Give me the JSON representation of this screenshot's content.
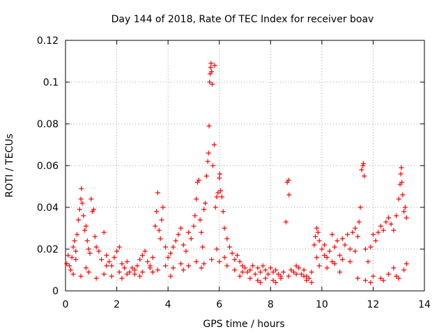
{
  "chart_data": {
    "type": "scatter",
    "title": "Day 144 of 2018, Rate Of TEC Index for receiver boav",
    "xlabel": "GPS time / hours",
    "ylabel": "ROTI / TECUs",
    "xlim": [
      0,
      14
    ],
    "ylim": [
      0,
      0.12
    ],
    "xticks": [
      "0",
      "2",
      "4",
      "6",
      "8",
      "10",
      "12",
      "14"
    ],
    "yticks": [
      "0",
      "0.02",
      "0.04",
      "0.06",
      "0.08",
      "0.1",
      "0.12"
    ],
    "grid": true,
    "marker": "plus",
    "color": "#ff0000",
    "series": [
      {
        "name": "ROTI",
        "points": [
          [
            0.05,
            0.013
          ],
          [
            0.1,
            0.017
          ],
          [
            0.15,
            0.012
          ],
          [
            0.2,
            0.01
          ],
          [
            0.25,
            0.016
          ],
          [
            0.3,
            0.021
          ],
          [
            0.35,
            0.024
          ],
          [
            0.4,
            0.019
          ],
          [
            0.45,
            0.027
          ],
          [
            0.5,
            0.034
          ],
          [
            0.55,
            0.039
          ],
          [
            0.6,
            0.044
          ],
          [
            0.62,
            0.049
          ],
          [
            0.65,
            0.042
          ],
          [
            0.7,
            0.036
          ],
          [
            0.75,
            0.029
          ],
          [
            0.8,
            0.031
          ],
          [
            0.85,
            0.024
          ],
          [
            0.9,
            0.02
          ],
          [
            0.95,
            0.018
          ],
          [
            1.0,
            0.044
          ],
          [
            1.05,
            0.038
          ],
          [
            1.1,
            0.039
          ],
          [
            1.15,
            0.026
          ],
          [
            1.2,
            0.021
          ],
          [
            1.3,
            0.019
          ],
          [
            1.4,
            0.015
          ],
          [
            1.5,
            0.028
          ],
          [
            1.6,
            0.017
          ],
          [
            1.7,
            0.014
          ],
          [
            1.8,
            0.012
          ],
          [
            1.9,
            0.016
          ],
          [
            2.0,
            0.019
          ],
          [
            2.1,
            0.021
          ],
          [
            2.2,
            0.013
          ],
          [
            2.3,
            0.011
          ],
          [
            2.4,
            0.014
          ],
          [
            2.5,
            0.009
          ],
          [
            2.6,
            0.011
          ],
          [
            2.7,
            0.008
          ],
          [
            2.8,
            0.012
          ],
          [
            2.9,
            0.015
          ],
          [
            3.0,
            0.017
          ],
          [
            3.1,
            0.019
          ],
          [
            3.2,
            0.014
          ],
          [
            3.3,
            0.012
          ],
          [
            3.4,
            0.016
          ],
          [
            3.5,
            0.031
          ],
          [
            3.55,
            0.038
          ],
          [
            3.6,
            0.047
          ],
          [
            3.65,
            0.029
          ],
          [
            3.7,
            0.025
          ],
          [
            3.75,
            0.034
          ],
          [
            3.8,
            0.04
          ],
          [
            3.9,
            0.021
          ],
          [
            4.0,
            0.016
          ],
          [
            4.1,
            0.018
          ],
          [
            4.2,
            0.021
          ],
          [
            4.3,
            0.024
          ],
          [
            4.4,
            0.027
          ],
          [
            4.5,
            0.03
          ],
          [
            4.6,
            0.022
          ],
          [
            4.7,
            0.019
          ],
          [
            4.8,
            0.028
          ],
          [
            4.9,
            0.025
          ],
          [
            5.0,
            0.031
          ],
          [
            5.05,
            0.036
          ],
          [
            5.1,
            0.044
          ],
          [
            5.15,
            0.052
          ],
          [
            5.2,
            0.053
          ],
          [
            5.25,
            0.034
          ],
          [
            5.3,
            0.028
          ],
          [
            5.35,
            0.021
          ],
          [
            5.4,
            0.039
          ],
          [
            5.45,
            0.042
          ],
          [
            5.5,
            0.055
          ],
          [
            5.55,
            0.062
          ],
          [
            5.58,
            0.066
          ],
          [
            5.6,
            0.079
          ],
          [
            5.62,
            0.1
          ],
          [
            5.64,
            0.104
          ],
          [
            5.66,
            0.107
          ],
          [
            5.68,
            0.109
          ],
          [
            5.7,
            0.105
          ],
          [
            5.72,
            0.099
          ],
          [
            5.75,
            0.06
          ],
          [
            5.8,
            0.07
          ],
          [
            5.82,
            0.108
          ],
          [
            5.85,
            0.04
          ],
          [
            5.9,
            0.045
          ],
          [
            5.95,
            0.047
          ],
          [
            6.0,
            0.054
          ],
          [
            6.02,
            0.056
          ],
          [
            6.05,
            0.048
          ],
          [
            6.1,
            0.045
          ],
          [
            6.15,
            0.038
          ],
          [
            6.2,
            0.03
          ],
          [
            6.3,
            0.025
          ],
          [
            6.4,
            0.021
          ],
          [
            6.5,
            0.018
          ],
          [
            6.6,
            0.015
          ],
          [
            6.7,
            0.017
          ],
          [
            6.8,
            0.014
          ],
          [
            6.9,
            0.012
          ],
          [
            7.0,
            0.011
          ],
          [
            7.1,
            0.009
          ],
          [
            7.2,
            0.01
          ],
          [
            7.3,
            0.012
          ],
          [
            7.4,
            0.008
          ],
          [
            7.5,
            0.011
          ],
          [
            7.6,
            0.009
          ],
          [
            7.7,
            0.012
          ],
          [
            7.8,
            0.01
          ],
          [
            7.9,
            0.008
          ],
          [
            8.0,
            0.011
          ],
          [
            8.1,
            0.009
          ],
          [
            8.2,
            0.01
          ],
          [
            8.3,
            0.008
          ],
          [
            8.4,
            0.007
          ],
          [
            8.5,
            0.009
          ],
          [
            8.6,
            0.033
          ],
          [
            8.65,
            0.052
          ],
          [
            8.7,
            0.053
          ],
          [
            8.72,
            0.046
          ],
          [
            8.8,
            0.01
          ],
          [
            8.9,
            0.009
          ],
          [
            9.0,
            0.012
          ],
          [
            9.1,
            0.011
          ],
          [
            9.2,
            0.008
          ],
          [
            9.3,
            0.01
          ],
          [
            9.4,
            0.007
          ],
          [
            9.5,
            0.006
          ],
          [
            9.6,
            0.004
          ],
          [
            9.7,
            0.022
          ],
          [
            9.75,
            0.026
          ],
          [
            9.8,
            0.03
          ],
          [
            9.85,
            0.028
          ],
          [
            9.9,
            0.024
          ],
          [
            10.0,
            0.02
          ],
          [
            10.1,
            0.022
          ],
          [
            10.2,
            0.016
          ],
          [
            10.3,
            0.019
          ],
          [
            10.4,
            0.014
          ],
          [
            10.5,
            0.021
          ],
          [
            10.6,
            0.024
          ],
          [
            10.7,
            0.017
          ],
          [
            10.8,
            0.025
          ],
          [
            10.9,
            0.022
          ],
          [
            11.0,
            0.027
          ],
          [
            11.1,
            0.02
          ],
          [
            11.2,
            0.028
          ],
          [
            11.3,
            0.03
          ],
          [
            11.4,
            0.026
          ],
          [
            11.45,
            0.033
          ],
          [
            11.5,
            0.04
          ],
          [
            11.55,
            0.058
          ],
          [
            11.6,
            0.06
          ],
          [
            11.62,
            0.061
          ],
          [
            11.65,
            0.055
          ],
          [
            11.7,
            0.02
          ],
          [
            11.8,
            0.014
          ],
          [
            11.9,
            0.021
          ],
          [
            12.0,
            0.027
          ],
          [
            12.1,
            0.024
          ],
          [
            12.2,
            0.028
          ],
          [
            12.3,
            0.031
          ],
          [
            12.4,
            0.029
          ],
          [
            12.5,
            0.033
          ],
          [
            12.6,
            0.035
          ],
          [
            12.7,
            0.032
          ],
          [
            12.8,
            0.029
          ],
          [
            12.9,
            0.036
          ],
          [
            13.0,
            0.044
          ],
          [
            13.05,
            0.051
          ],
          [
            13.08,
            0.056
          ],
          [
            13.1,
            0.059
          ],
          [
            13.12,
            0.052
          ],
          [
            13.15,
            0.046
          ],
          [
            13.2,
            0.038
          ],
          [
            13.25,
            0.04
          ],
          [
            13.3,
            0.035
          ],
          [
            0.3,
            0.008
          ],
          [
            0.6,
            0.007
          ],
          [
            0.9,
            0.009
          ],
          [
            1.2,
            0.006
          ],
          [
            1.5,
            0.008
          ],
          [
            1.8,
            0.007
          ],
          [
            2.1,
            0.009
          ],
          [
            2.4,
            0.008
          ],
          [
            2.7,
            0.01
          ],
          [
            3.0,
            0.009
          ],
          [
            3.3,
            0.011
          ],
          [
            3.6,
            0.01
          ],
          [
            3.9,
            0.012
          ],
          [
            4.2,
            0.011
          ],
          [
            4.5,
            0.013
          ],
          [
            4.8,
            0.012
          ],
          [
            5.1,
            0.014
          ],
          [
            5.4,
            0.013
          ],
          [
            5.7,
            0.015
          ],
          [
            6.0,
            0.014
          ],
          [
            6.3,
            0.012
          ],
          [
            6.6,
            0.01
          ],
          [
            6.9,
            0.009
          ],
          [
            7.2,
            0.006
          ],
          [
            7.5,
            0.005
          ],
          [
            7.8,
            0.006
          ],
          [
            8.1,
            0.005
          ],
          [
            8.4,
            0.006
          ],
          [
            8.7,
            0.007
          ],
          [
            9.0,
            0.008
          ],
          [
            9.3,
            0.007
          ],
          [
            9.6,
            0.009
          ],
          [
            9.9,
            0.012
          ],
          [
            10.2,
            0.011
          ],
          [
            10.5,
            0.013
          ],
          [
            10.8,
            0.015
          ],
          [
            11.1,
            0.014
          ],
          [
            11.4,
            0.006
          ],
          [
            11.7,
            0.005
          ],
          [
            12.0,
            0.007
          ],
          [
            12.3,
            0.006
          ],
          [
            12.6,
            0.008
          ],
          [
            12.9,
            0.007
          ],
          [
            13.2,
            0.01
          ],
          [
            13.3,
            0.013
          ],
          [
            0.4,
            0.015
          ],
          [
            0.8,
            0.011
          ],
          [
            1.6,
            0.012
          ],
          [
            2.2,
            0.006
          ],
          [
            2.9,
            0.007
          ],
          [
            3.4,
            0.009
          ],
          [
            4.1,
            0.007
          ],
          [
            4.6,
            0.01
          ],
          [
            5.3,
            0.011
          ],
          [
            5.9,
            0.02
          ],
          [
            6.2,
            0.016
          ],
          [
            6.8,
            0.007
          ],
          [
            7.6,
            0.004
          ],
          [
            8.2,
            0.004
          ],
          [
            9.4,
            0.005
          ],
          [
            10.1,
            0.017
          ],
          [
            10.7,
            0.009
          ],
          [
            11.3,
            0.019
          ],
          [
            11.9,
            0.004
          ],
          [
            12.4,
            0.005
          ],
          [
            12.8,
            0.011
          ],
          [
            13.0,
            0.006
          ],
          [
            9.8,
            0.016
          ],
          [
            10.4,
            0.027
          ]
        ]
      }
    ]
  }
}
